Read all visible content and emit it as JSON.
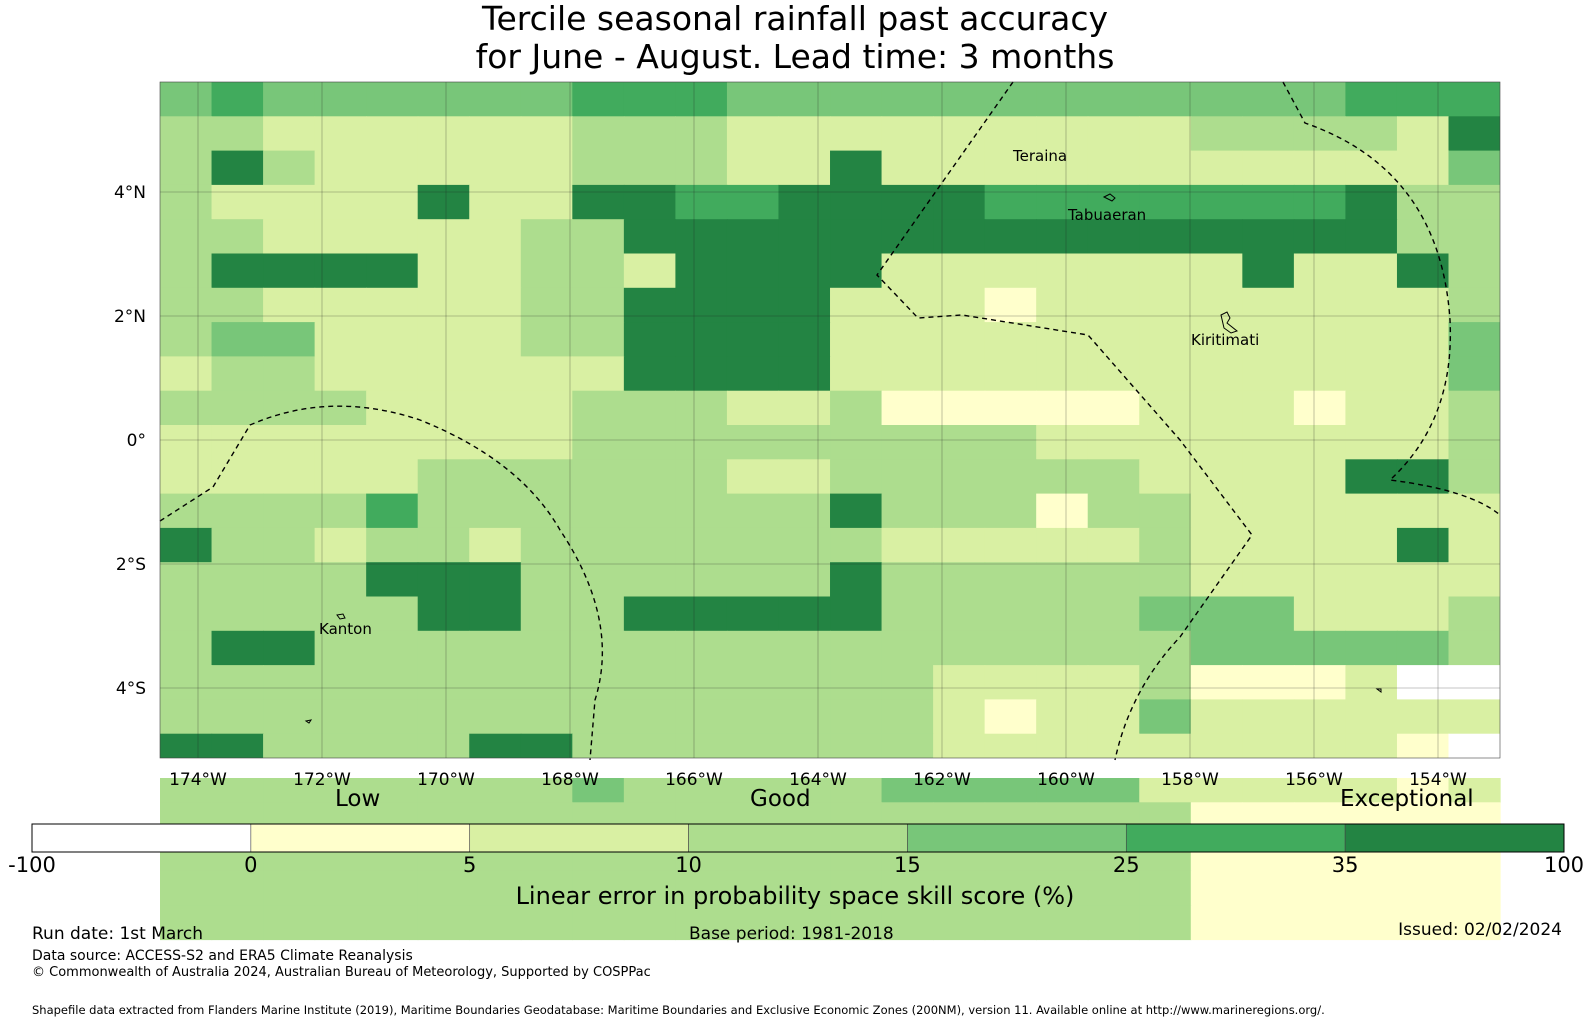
{
  "title": {
    "line1": "Tercile seasonal rainfall past accuracy",
    "line2": "for June - August. Lead time: 3 months"
  },
  "map": {
    "lon_ticks": [
      "174°W",
      "172°W",
      "170°W",
      "168°W",
      "166°W",
      "164°W",
      "162°W",
      "160°W",
      "158°W",
      "156°W",
      "154°W"
    ],
    "lat_ticks": [
      "4°N",
      "2°N",
      "0°",
      "2°S",
      "4°S"
    ],
    "place_labels": [
      "Teraina",
      "Tabuaeran",
      "Kiritimati",
      "Kanton"
    ],
    "grid_rows": [
      "45444444555444444444444555",
      "33222222333222222222333326",
      "36322222333226222222222224",
      "32222622665566665555555633",
      "33222223366666666666666633",
      "36666223326666222222262263",
      "33222223366662221222222223",
      "34422223366662222222222224",
      "23322222266662222222222224",
      "33332222333223111112221223",
      "22222222333333333222222223",
      "22222333333223333332222663",
      "33335333333336333133222222",
      "63323323333333222223222262",
      "33336663333336333333222222",
      "33333663366666333334442223",
      "36633333333333333333444443",
      "33333333333333322223111200",
      "33333333333333321224222222",
      "66333366333333322222222210",
      "33333333433333444442222212",
      "33333333333333333333111111",
      "33333333333333333333111111",
      "33333333333333333333111111",
      "33333333333333333333111111"
    ]
  },
  "colorbar": {
    "categories": [
      "Low",
      "Good",
      "Exceptional"
    ],
    "boundaries": [
      "-100",
      "0",
      "5",
      "10",
      "15",
      "25",
      "35",
      "100"
    ],
    "colors": [
      "#ffffff",
      "#ffffcc",
      "#d9f0a3",
      "#addd8e",
      "#78c679",
      "#41ab5d",
      "#238443"
    ],
    "title": "Linear error in probability space skill score (%)"
  },
  "footer": {
    "run_date": "Run date: 1st March",
    "base_period": "Base period: 1981-2018",
    "issued": "Issued: 02/02/2024",
    "data_source": "Data source: ACCESS-S2 and ERA5 Climate Reanalysis",
    "copyright": "© Commonwealth of Australia 2024, Australian Bureau of Meteorology, Supported by COSPPac",
    "shapefile": "Shapefile data extracted from Flanders Marine Institute (2019), Maritime Boundaries Geodatabase: Maritime Boundaries and Exclusive Economic Zones (200NM), version 11. Available online at http://www.marineregions.org/."
  }
}
